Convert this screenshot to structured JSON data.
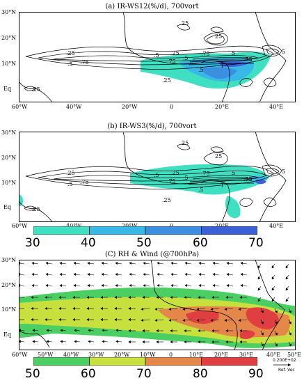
{
  "panel_a": {
    "title": "(a) IR-WS12(%/d), 700vort",
    "contour_labels": [
      "25",
      ".25",
      ".5",
      ".75",
      ".5",
      ".25",
      ".25",
      ".5",
      ".75",
      "1",
      ".75",
      "5",
      ".75",
      ".5",
      ".25",
      "5",
      "25"
    ]
  },
  "panel_b": {
    "title": "(b) IR-WS3(%/d), 700vort",
    "contour_labels": [
      "25",
      ".25",
      ".5",
      ".75",
      ".5",
      ".25",
      ".25",
      ".5",
      ".75",
      "1",
      ".75",
      "5",
      ".75",
      ".5",
      ".25",
      "5",
      "25"
    ]
  },
  "panel_c": {
    "title": "(C) RH & Wind (@700hPa)",
    "ref_vector_value": "0.200E+02",
    "ref_vector_label": "Ref. Vec"
  },
  "lat_labels_ab": [
    "30°N",
    "20°N",
    "10°N",
    "Eq"
  ],
  "lat_labels_c": [
    "30°N",
    "20°N",
    "10°N",
    "Eq"
  ],
  "lon_labels_ab": [
    "60°W",
    "40°W",
    "20°W",
    "0",
    "20°E",
    "40°E"
  ],
  "lon_labels_c": [
    "60°W",
    "50°W",
    "40°W",
    "30°W",
    "20°W",
    "10°W",
    "0",
    "10°E",
    "20°E",
    "30°E",
    "40°E",
    "50°E"
  ],
  "colorbar_ab": {
    "ticks": [
      "30",
      "40",
      "50",
      "60",
      "70"
    ],
    "colors": [
      "#3fe0c2",
      "#37b8e6",
      "#3b8ee0",
      "#3b5fd6"
    ]
  },
  "colorbar_c": {
    "ticks": [
      "50",
      "60",
      "70",
      "80",
      "90"
    ],
    "colors": [
      "#4ccf62",
      "#c7e03e",
      "#e6874a",
      "#e03f42"
    ]
  }
}
